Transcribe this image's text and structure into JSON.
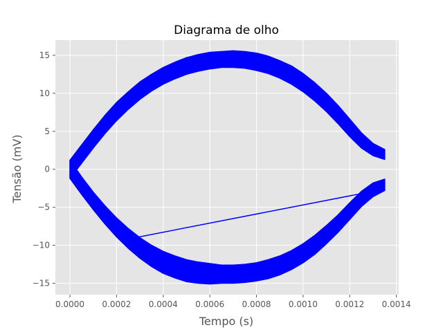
{
  "chart_data": {
    "type": "line",
    "title": "Diagrama de olho",
    "xlabel": "Tempo (s)",
    "ylabel": "Tensão (mV)",
    "xlim": [
      -6.25e-05,
      0.00141
    ],
    "ylim": [
      -16.5,
      17
    ],
    "grid": true,
    "background": "#e5e5e5",
    "series_color": "#0000ff",
    "xticks": [
      0.0,
      0.0002,
      0.0004,
      0.0006,
      0.0008,
      0.001,
      0.0012,
      0.0014
    ],
    "xtick_labels": [
      "0.0000",
      "0.0002",
      "0.0004",
      "0.0006",
      "0.0008",
      "0.0010",
      "0.0012",
      "0.0014"
    ],
    "yticks": [
      -15,
      -10,
      -5,
      0,
      5,
      10,
      15
    ],
    "ytick_labels": [
      "−15",
      "−10",
      "−5",
      "0",
      "5",
      "10",
      "15"
    ],
    "series": [
      {
        "role": "upper-eye-band",
        "x": [
          0.0,
          5e-05,
          0.0001,
          0.00015,
          0.0002,
          0.00025,
          0.0003,
          0.00035,
          0.0004,
          0.00045,
          0.0005,
          0.00055,
          0.0006,
          0.00065,
          0.0007,
          0.00075,
          0.0008,
          0.00085,
          0.0009,
          0.00095,
          0.001,
          0.00105,
          0.0011,
          0.00115,
          0.0012,
          0.00125,
          0.0013,
          0.00135
        ],
        "y_upper": [
          1.2,
          3.2,
          5.2,
          7.1,
          8.8,
          10.2,
          11.5,
          12.5,
          13.4,
          14.1,
          14.7,
          15.1,
          15.4,
          15.5,
          15.6,
          15.5,
          15.3,
          14.9,
          14.3,
          13.6,
          12.6,
          11.4,
          10.0,
          8.4,
          6.6,
          4.8,
          3.4,
          2.6
        ],
        "y_lower": [
          -1.2,
          0.8,
          2.8,
          4.7,
          6.4,
          7.9,
          9.2,
          10.3,
          11.2,
          11.9,
          12.5,
          12.9,
          13.2,
          13.4,
          13.4,
          13.3,
          13.0,
          12.6,
          12.0,
          11.2,
          10.2,
          9.0,
          7.6,
          6.0,
          4.3,
          2.8,
          1.8,
          1.3
        ]
      },
      {
        "role": "lower-eye-band",
        "x": [
          0.0,
          5e-05,
          0.0001,
          0.00015,
          0.0002,
          0.00025,
          0.0003,
          0.00035,
          0.0004,
          0.00045,
          0.0005,
          0.00055,
          0.0006,
          0.00065,
          0.0007,
          0.00075,
          0.0008,
          0.00085,
          0.0009,
          0.00095,
          0.001,
          0.00105,
          0.0011,
          0.00115,
          0.0012,
          0.00125,
          0.0013,
          0.00135
        ],
        "y_upper": [
          1.2,
          -1.0,
          -3.0,
          -4.8,
          -6.4,
          -7.8,
          -9.0,
          -10.0,
          -10.8,
          -11.4,
          -11.9,
          -12.2,
          -12.4,
          -12.6,
          -12.6,
          -12.5,
          -12.3,
          -11.9,
          -11.4,
          -10.7,
          -9.8,
          -8.7,
          -7.4,
          -6.0,
          -4.4,
          -2.9,
          -1.8,
          -1.3
        ],
        "y_lower": [
          -1.2,
          -3.3,
          -5.3,
          -7.2,
          -8.9,
          -10.4,
          -11.7,
          -12.8,
          -13.7,
          -14.3,
          -14.8,
          -15.0,
          -15.1,
          -15.0,
          -15.0,
          -14.9,
          -14.7,
          -14.4,
          -13.9,
          -13.2,
          -12.3,
          -11.2,
          -9.8,
          -8.3,
          -6.6,
          -4.9,
          -3.6,
          -2.8
        ]
      },
      {
        "role": "stray-trace",
        "x": [
          0.0,
          0.00015,
          0.00022,
          0.00028,
          0.00135
        ],
        "y": [
          -1.0,
          -6.5,
          -9.3,
          -9.0,
          -2.6
        ]
      }
    ]
  }
}
